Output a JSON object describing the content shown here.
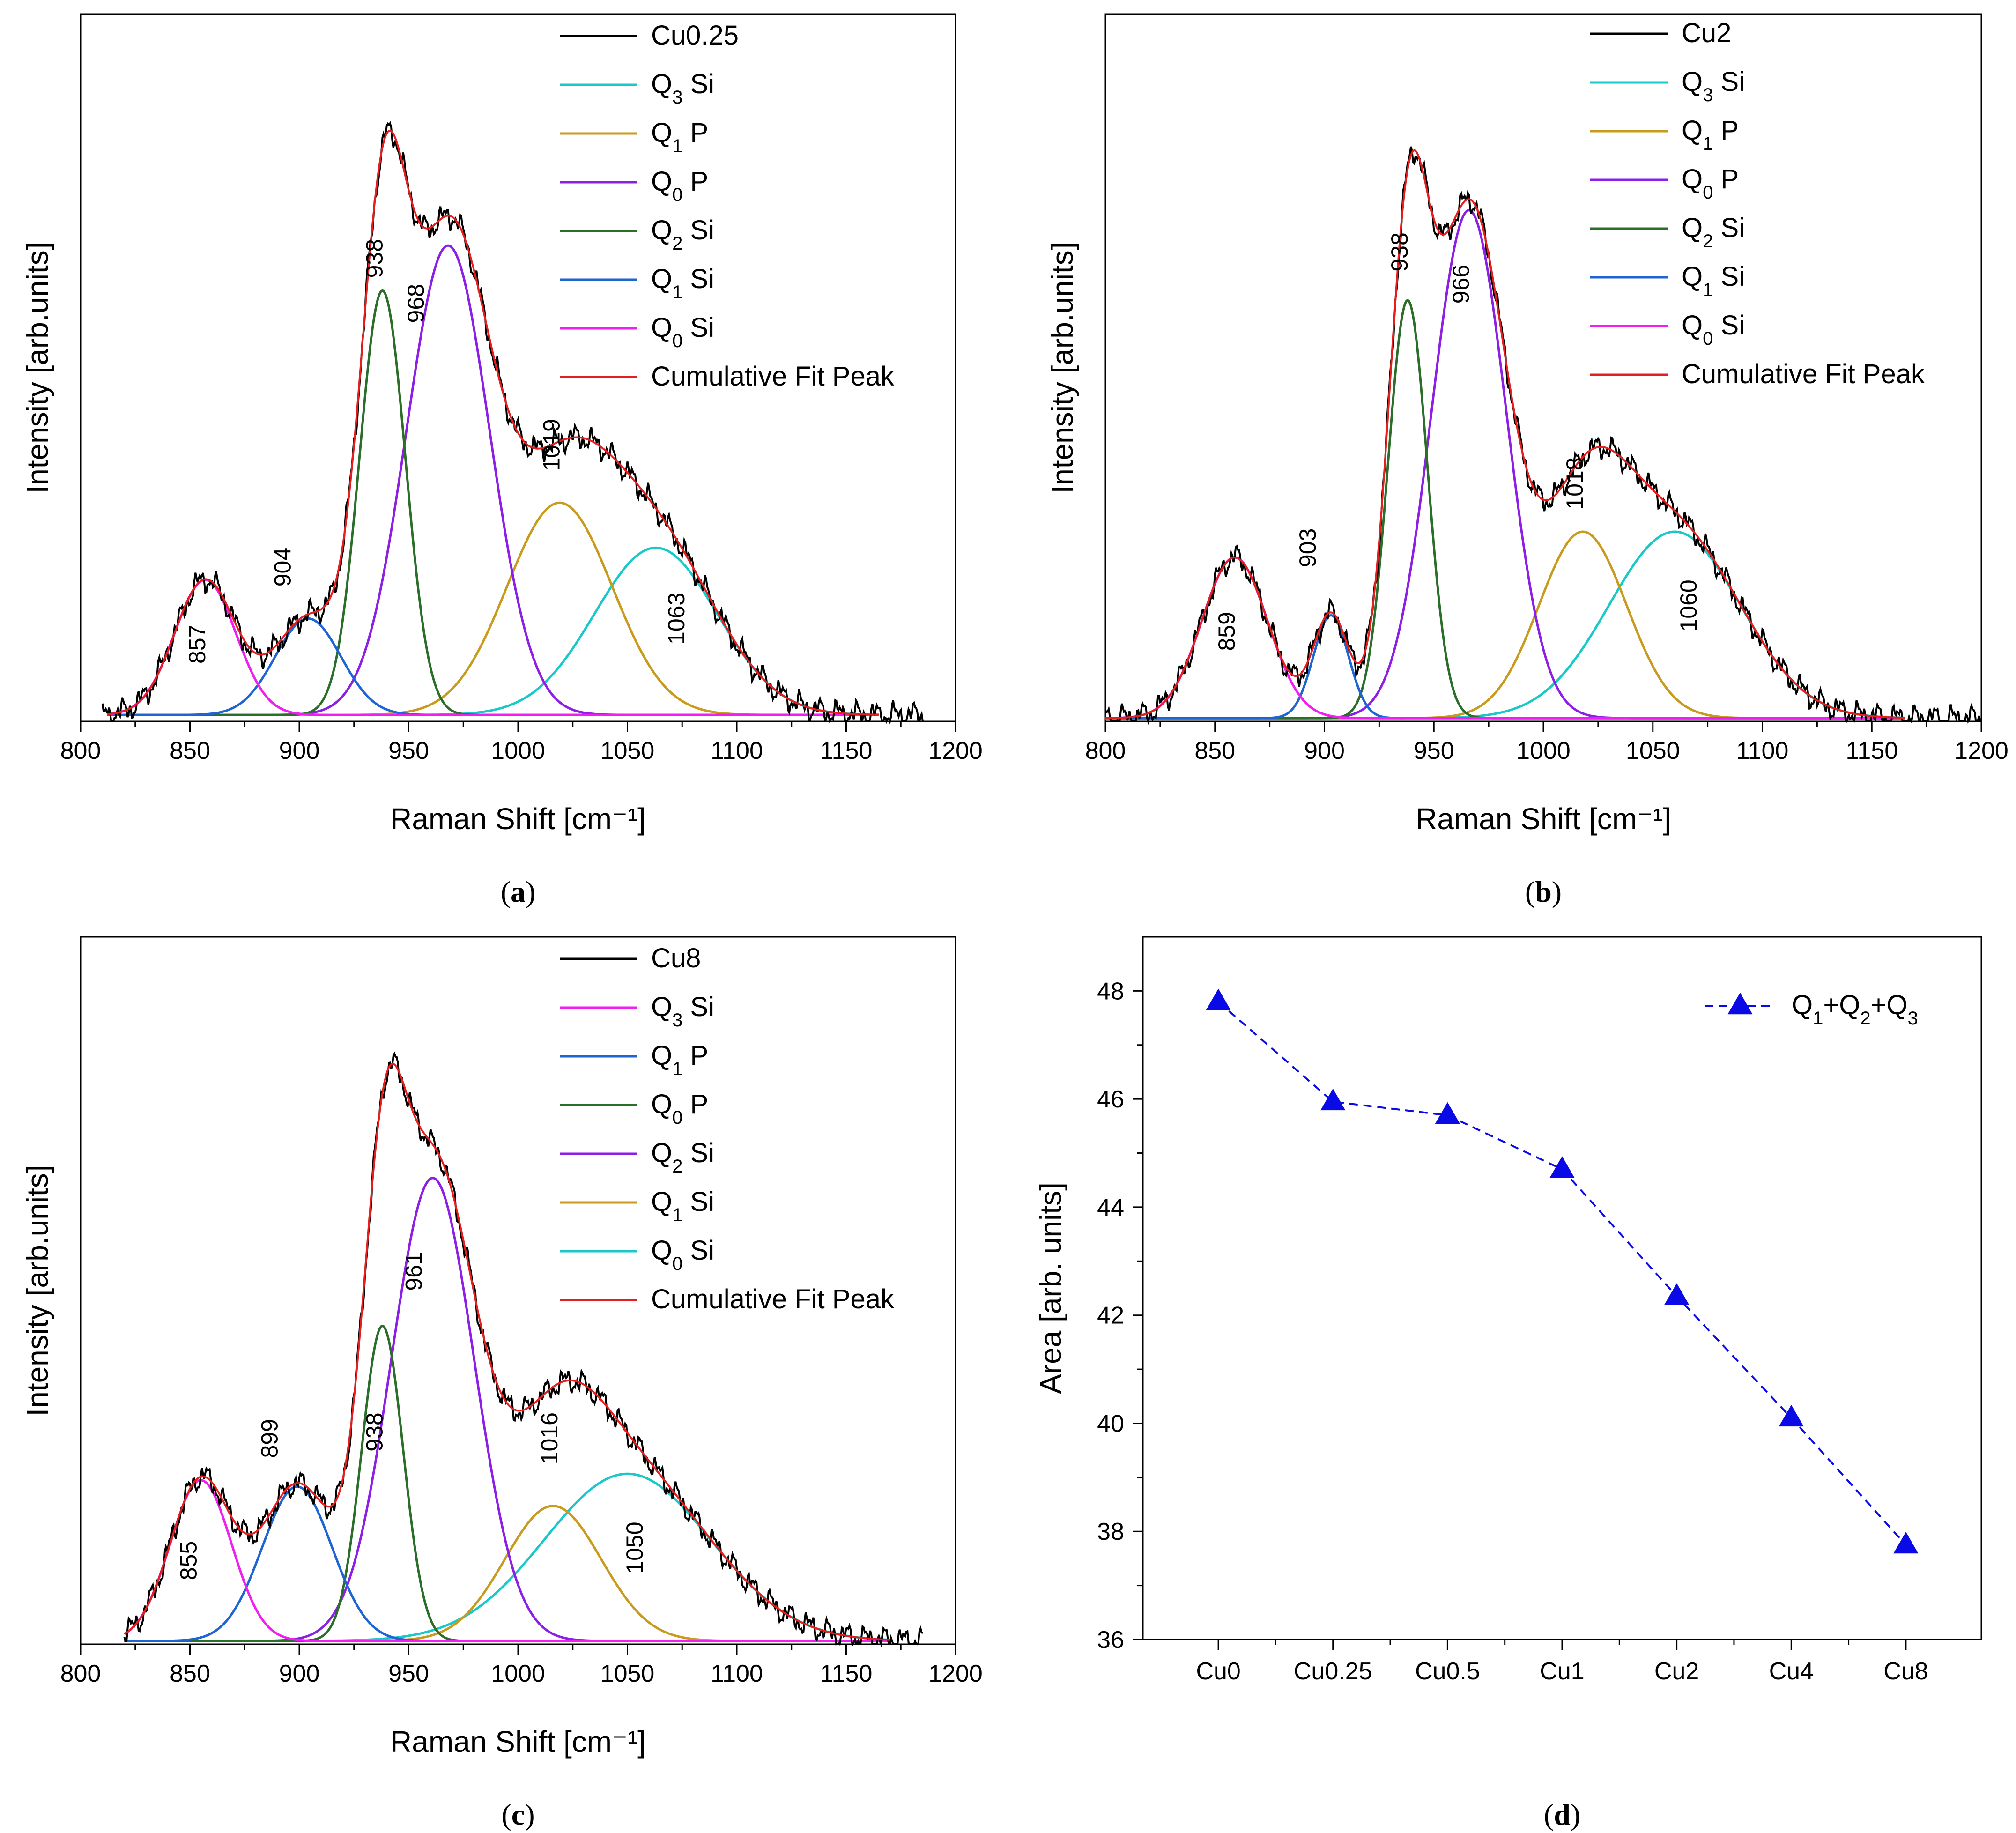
{
  "colors": {
    "q3si": "#19c8c8",
    "q1p": "#c89b1e",
    "q0p": "#8c1ee6",
    "q2si": "#2a6e2a",
    "q1si": "#1e64d2",
    "q0si": "#f01ef0",
    "fit": "#e61e1e",
    "raw": "#000000",
    "area": "#0a0ae6"
  },
  "chart_data": [
    {
      "panel": "a",
      "type": "line",
      "panel_label": "(a)",
      "panel_letter": "a",
      "xlabel": "Raman Shift [cm⁻¹]",
      "ylabel": "Intensity [arb.units]",
      "xlim": [
        800,
        1200
      ],
      "ylim": [
        0,
        1.1
      ],
      "xticks": [
        800,
        850,
        900,
        950,
        1000,
        1050,
        1100,
        1150,
        1200
      ],
      "x_range": [
        810,
        1185
      ],
      "fit_range": [
        812,
        1165
      ],
      "baseline": 0.01,
      "sample": "Cu0.25",
      "legend": [
        {
          "label": "Cu0.25",
          "sub": "",
          "suffix": "",
          "color_key": "raw"
        },
        {
          "label": "Q",
          "sub": "3",
          "suffix": " Si",
          "color_key": "q3si"
        },
        {
          "label": "Q",
          "sub": "1",
          "suffix": " P",
          "color_key": "q1p"
        },
        {
          "label": "Q",
          "sub": "0",
          "suffix": " P",
          "color_key": "q0p"
        },
        {
          "label": "Q",
          "sub": "2",
          "suffix": " Si",
          "color_key": "q2si"
        },
        {
          "label": "Q",
          "sub": "1",
          "suffix": " Si",
          "color_key": "q1si"
        },
        {
          "label": "Q",
          "sub": "0",
          "suffix": " Si",
          "color_key": "q0si"
        },
        {
          "label": "Cumulative Fit Peak",
          "sub": "",
          "suffix": "",
          "color_key": "fit"
        }
      ],
      "series": [
        {
          "name": "Q3 Si",
          "center": 1063,
          "amplitude": 0.26,
          "sigma": 28,
          "color_key": "q3si",
          "label": "1063",
          "label_pos": [
            1076,
            0.16
          ]
        },
        {
          "name": "Q1 P",
          "center": 1019,
          "amplitude": 0.33,
          "sigma": 24,
          "color_key": "q1p",
          "label": "1019",
          "label_pos": [
            1019,
            0.43
          ]
        },
        {
          "name": "Q0 P",
          "center": 968,
          "amplitude": 0.73,
          "sigma": 19,
          "color_key": "q0p",
          "label": "968",
          "label_pos": [
            957,
            0.65
          ]
        },
        {
          "name": "Q2 Si",
          "center": 938,
          "amplitude": 0.66,
          "sigma": 10.5,
          "color_key": "q2si",
          "label": "938",
          "label_pos": [
            938,
            0.72
          ]
        },
        {
          "name": "Q1 Si",
          "center": 904,
          "amplitude": 0.15,
          "sigma": 15,
          "color_key": "q1si",
          "label": "904",
          "label_pos": [
            896,
            0.24
          ]
        },
        {
          "name": "Q0 Si",
          "center": 857,
          "amplitude": 0.21,
          "sigma": 14,
          "color_key": "q0si",
          "label": "857",
          "label_pos": [
            857,
            0.12
          ]
        }
      ]
    },
    {
      "panel": "b",
      "type": "line",
      "panel_label": "(b)",
      "panel_letter": "b",
      "xlabel": "Raman Shift [cm⁻¹]",
      "ylabel": "Intensity [arb.units]",
      "xlim": [
        800,
        1200
      ],
      "ylim": [
        0,
        1.1
      ],
      "xticks": [
        800,
        850,
        900,
        950,
        1000,
        1050,
        1100,
        1150,
        1200
      ],
      "x_range": [
        800,
        1200
      ],
      "fit_range": [
        800,
        1165
      ],
      "baseline": 0.005,
      "sample": "Cu2",
      "legend": [
        {
          "label": "Cu2",
          "sub": "",
          "suffix": "",
          "color_key": "raw"
        },
        {
          "label": "Q",
          "sub": "3",
          "suffix": " Si",
          "color_key": "q3si"
        },
        {
          "label": "Q",
          "sub": "1",
          "suffix": " P",
          "color_key": "q1p"
        },
        {
          "label": "Q",
          "sub": "0",
          "suffix": " P",
          "color_key": "q0p"
        },
        {
          "label": "Q",
          "sub": "2",
          "suffix": " Si",
          "color_key": "q2si"
        },
        {
          "label": "Q",
          "sub": "1",
          "suffix": " Si",
          "color_key": "q1si"
        },
        {
          "label": "Q",
          "sub": "0",
          "suffix": " Si",
          "color_key": "q0si"
        },
        {
          "label": "Cumulative Fit Peak",
          "sub": "",
          "suffix": "",
          "color_key": "fit"
        }
      ],
      "series": [
        {
          "name": "Q3 Si",
          "center": 1060,
          "amplitude": 0.29,
          "sigma": 30,
          "color_key": "q3si",
          "label": "1060",
          "label_pos": [
            1070,
            0.18
          ]
        },
        {
          "name": "Q1 P",
          "center": 1018,
          "amplitude": 0.29,
          "sigma": 20,
          "color_key": "q1p",
          "label": "1018",
          "label_pos": [
            1018,
            0.37
          ]
        },
        {
          "name": "Q0 P",
          "center": 966,
          "amplitude": 0.79,
          "sigma": 17,
          "color_key": "q0p",
          "label": "966",
          "label_pos": [
            966,
            0.68
          ]
        },
        {
          "name": "Q2 Si",
          "center": 938,
          "amplitude": 0.65,
          "sigma": 9,
          "color_key": "q2si",
          "label": "938",
          "label_pos": [
            938,
            0.73
          ]
        },
        {
          "name": "Q1 Si",
          "center": 903,
          "amplitude": 0.16,
          "sigma": 8,
          "color_key": "q1si",
          "label": "903",
          "label_pos": [
            896,
            0.27
          ]
        },
        {
          "name": "Q0 Si",
          "center": 859,
          "amplitude": 0.25,
          "sigma": 15,
          "color_key": "q0si",
          "label": "859",
          "label_pos": [
            859,
            0.14
          ]
        }
      ]
    },
    {
      "panel": "c",
      "type": "line",
      "panel_label": "(c)",
      "panel_letter": "c",
      "xlabel": "Raman Shift [cm⁻¹]",
      "ylabel": "Intensity [arb.units]",
      "xlim": [
        800,
        1200
      ],
      "ylim": [
        0,
        1.1
      ],
      "xticks": [
        800,
        850,
        900,
        950,
        1000,
        1050,
        1100,
        1150,
        1200
      ],
      "x_range": [
        820,
        1185
      ],
      "fit_range": [
        820,
        1170
      ],
      "baseline": 0.005,
      "sample": "Cu8",
      "legend": [
        {
          "label": "Cu8",
          "sub": "",
          "suffix": "",
          "color_key": "raw"
        },
        {
          "label": "Q",
          "sub": "3",
          "suffix": " Si",
          "color_key": "q0si"
        },
        {
          "label": "Q",
          "sub": "1",
          "suffix": " P",
          "color_key": "q1si"
        },
        {
          "label": "Q",
          "sub": "0",
          "suffix": " P",
          "color_key": "q2si"
        },
        {
          "label": "Q",
          "sub": "2",
          "suffix": " Si",
          "color_key": "q0p"
        },
        {
          "label": "Q",
          "sub": "1",
          "suffix": " Si",
          "color_key": "q1p"
        },
        {
          "label": "Q",
          "sub": "0",
          "suffix": " Si",
          "color_key": "q3si"
        },
        {
          "label": "Cumulative Fit Peak",
          "sub": "",
          "suffix": "",
          "color_key": "fit"
        }
      ],
      "series": [
        {
          "name": "1050 peak",
          "center": 1050,
          "amplitude": 0.26,
          "sigma": 38,
          "color_key": "q3si",
          "label": "1050",
          "label_pos": [
            1057,
            0.15
          ]
        },
        {
          "name": "1016 peak",
          "center": 1016,
          "amplitude": 0.21,
          "sigma": 22,
          "color_key": "q1p",
          "label": "1016",
          "label_pos": [
            1018,
            0.32
          ]
        },
        {
          "name": "961 peak",
          "center": 961,
          "amplitude": 0.72,
          "sigma": 19,
          "color_key": "q0p",
          "label": "961",
          "label_pos": [
            956,
            0.58
          ]
        },
        {
          "name": "938 peak",
          "center": 938,
          "amplitude": 0.49,
          "sigma": 9.5,
          "color_key": "q2si",
          "label": "938",
          "label_pos": [
            938,
            0.33
          ]
        },
        {
          "name": "899 peak",
          "center": 899,
          "amplitude": 0.24,
          "sigma": 16,
          "color_key": "q1si",
          "label": "899",
          "label_pos": [
            890,
            0.32
          ]
        },
        {
          "name": "855 peak",
          "center": 855,
          "amplitude": 0.25,
          "sigma": 14,
          "color_key": "q0si",
          "label": "855",
          "label_pos": [
            853,
            0.13
          ]
        }
      ]
    },
    {
      "panel": "d",
      "type": "line",
      "panel_label": "(d)",
      "panel_letter": "d",
      "xlabel": "",
      "ylabel": "Area [arb. units]",
      "categories": [
        "Cu0",
        "Cu0.25",
        "Cu0.5",
        "Cu1",
        "Cu2",
        "Cu4",
        "Cu8"
      ],
      "values": [
        47.8,
        45.95,
        45.7,
        44.7,
        42.35,
        40.1,
        37.75
      ],
      "ylim": [
        36,
        49
      ],
      "yticks": [
        36,
        38,
        40,
        42,
        44,
        46,
        48
      ],
      "legend": {
        "label": "Q",
        "parts": [
          [
            "1",
            "+Q"
          ],
          [
            "2",
            "+Q"
          ],
          [
            "3",
            ""
          ]
        ],
        "color_key": "area"
      },
      "marker": "triangle",
      "linestyle": "dashed"
    }
  ]
}
